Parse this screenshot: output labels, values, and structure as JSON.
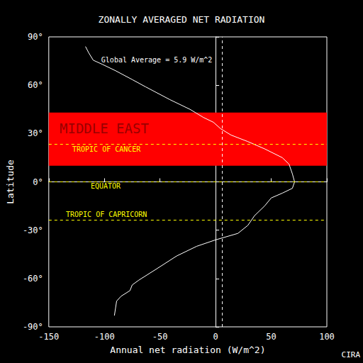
{
  "chart_data": {
    "type": "line",
    "title": "ZONALLY AVERAGED NET RADIATION",
    "x_label": "Annual net radiation (W/m^2)",
    "y_label": "Latitude",
    "x": [
      -117,
      -114,
      -110,
      -102,
      -90,
      -75,
      -63,
      -41,
      -23,
      -11,
      -2,
      4.5,
      14,
      29,
      44,
      60,
      66,
      69,
      71,
      69,
      60,
      50,
      44,
      35,
      29,
      20,
      0,
      -17,
      -35,
      -53,
      -69,
      -75,
      -77,
      -85,
      -89,
      -90,
      -91
    ],
    "y": [
      84,
      80,
      75.5,
      73,
      69,
      63.5,
      59,
      51,
      45,
      40,
      37,
      33,
      29,
      25,
      20.5,
      15,
      11,
      5,
      0,
      -4,
      -7,
      -10,
      -15,
      -21,
      -27,
      -32,
      -36,
      -40,
      -46,
      -54,
      -61,
      -64,
      -67.5,
      -71,
      -74,
      -78.5,
      -83
    ],
    "color": "#ffffff",
    "xlim": [
      -150,
      100
    ],
    "xticks": [
      -150,
      -100,
      -50,
      0,
      50,
      100
    ],
    "ylim": [
      -90,
      90
    ],
    "yticks": [
      {
        "value": -90,
        "label": "-90°"
      },
      {
        "value": -60,
        "label": "-60°"
      },
      {
        "value": -30,
        "label": "-30°"
      },
      {
        "value": 0,
        "label": "0°"
      },
      {
        "value": 30,
        "label": "30°"
      },
      {
        "value": 60,
        "label": "60°"
      },
      {
        "value": 90,
        "label": "90°"
      }
    ],
    "grid": false,
    "global_average": {
      "value": 5.9,
      "label": "Global Average = 5.9 W/m^2",
      "color": "#ffffff"
    },
    "region": {
      "label": "MIDDLE EAST",
      "latitude_range": [
        10,
        43
      ],
      "color": "#ff0000"
    },
    "reference_lines": [
      {
        "label": "TROPIC OF CANCER",
        "latitude": 23.5,
        "color": "#ffff00"
      },
      {
        "label": "EQUATOR",
        "latitude": 0,
        "color": "#ffff00"
      },
      {
        "label": "TROPIC OF CAPRICORN",
        "latitude": -23.5,
        "color": "#ffff00"
      }
    ],
    "credit": "CIRA"
  }
}
